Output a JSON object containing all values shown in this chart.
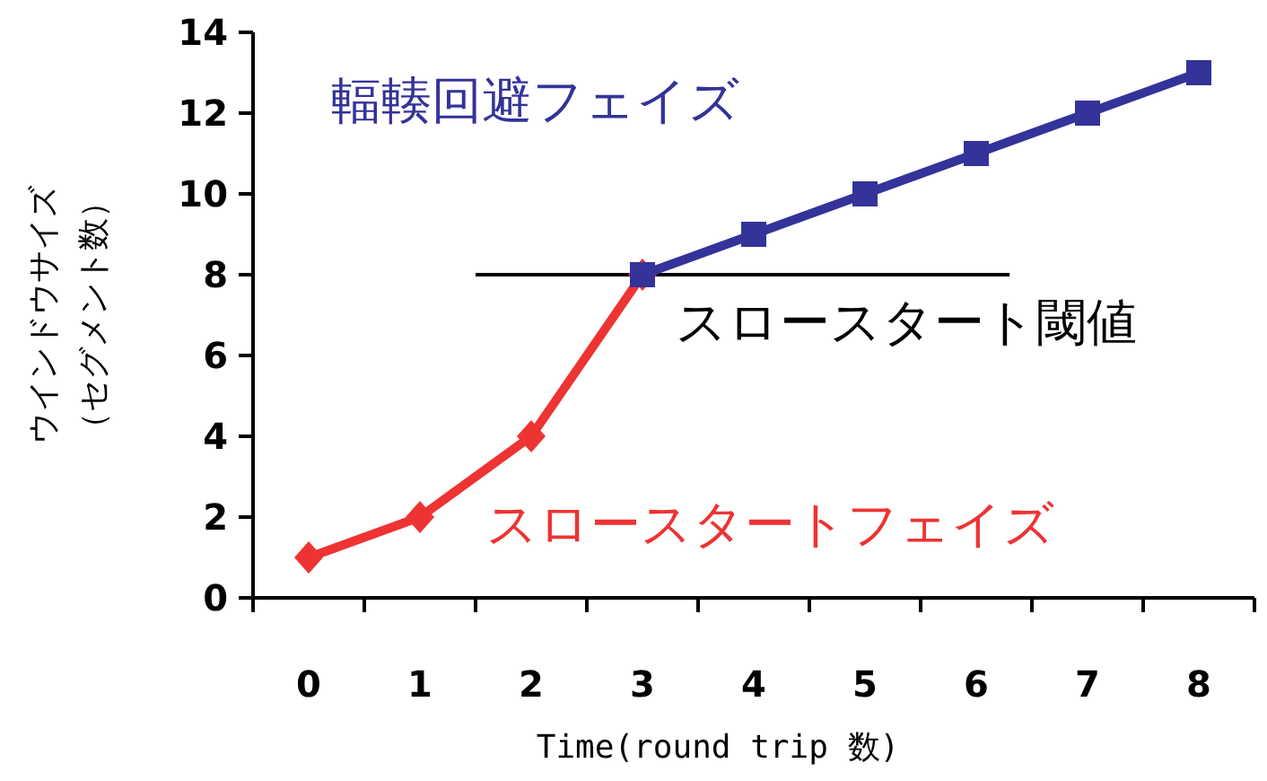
{
  "chart_data": {
    "type": "line",
    "categories": [
      "0",
      "1",
      "2",
      "3",
      "4",
      "5",
      "6",
      "7",
      "8"
    ],
    "series": [
      {
        "name": "スロースタートフェイズ",
        "color": "#ee3333",
        "marker": "diamond",
        "values": [
          1,
          2,
          4,
          8,
          null,
          null,
          null,
          null,
          null
        ]
      },
      {
        "name": "輻輳回避フェイズ",
        "color": "#333399",
        "marker": "square",
        "values": [
          null,
          null,
          null,
          8,
          9,
          10,
          11,
          12,
          13
        ]
      }
    ],
    "ylim": [
      0,
      14
    ],
    "yticks": [
      0,
      2,
      4,
      6,
      8,
      10,
      12,
      14
    ],
    "xlabel": "Time(round trip 数)",
    "ylabel": "ウインドウサイズ（セグメント数）",
    "ref_lines": [
      {
        "axis": "y",
        "value": 8,
        "label": "スロースタート閾値",
        "color": "#000000"
      }
    ],
    "grid": false,
    "legend": false,
    "line_style": "solid"
  }
}
